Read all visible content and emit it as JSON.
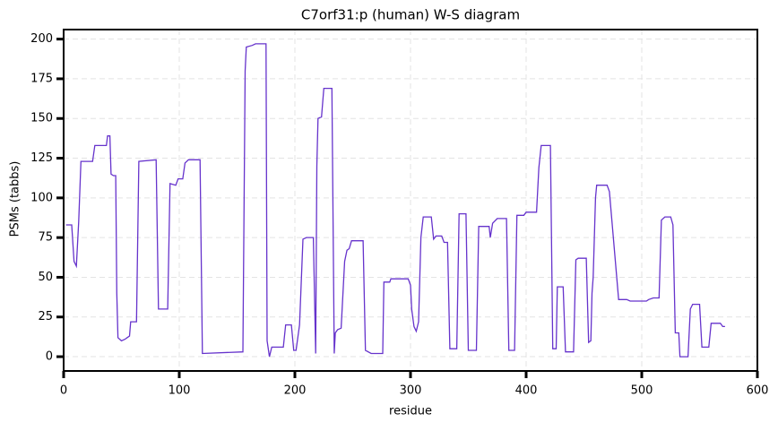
{
  "chart_data": {
    "type": "line",
    "title": "C7orf31:p (human) W-S diagram",
    "x_label": "residue",
    "y_label": "PSMs (tabbs)",
    "color": "#6633cc",
    "grid": true,
    "xlim": [
      0,
      600
    ],
    "ylim": [
      -9,
      206
    ],
    "xticks": [
      0,
      100,
      200,
      300,
      400,
      500,
      600
    ],
    "yticks": [
      0,
      25,
      50,
      75,
      100,
      125,
      150,
      175,
      200
    ],
    "x": [
      2,
      7,
      9,
      11,
      13,
      15,
      25,
      27,
      37,
      38,
      40,
      41,
      43,
      45,
      46,
      47,
      50,
      53,
      55,
      57,
      58,
      63,
      65,
      80,
      82,
      90,
      92,
      97,
      99,
      103,
      105,
      108,
      118,
      120,
      155,
      157,
      158,
      163,
      166,
      175,
      176,
      178,
      180,
      190,
      192,
      197,
      199,
      201,
      204,
      207,
      210,
      216,
      218,
      219,
      220,
      223,
      224,
      225,
      232,
      234,
      235,
      237,
      240,
      243,
      245,
      247,
      249,
      259,
      261,
      266,
      276,
      277,
      282,
      283,
      298,
      300,
      301,
      303,
      305,
      307,
      309,
      311,
      318,
      320,
      322,
      327,
      329,
      332,
      334,
      340,
      342,
      348,
      350,
      357,
      359,
      368,
      369,
      371,
      375,
      383,
      385,
      390,
      392,
      398,
      400,
      409,
      411,
      413,
      421,
      423,
      426,
      427,
      432,
      434,
      441,
      443,
      445,
      452,
      454,
      456,
      457,
      458,
      460,
      461,
      470,
      472,
      480,
      487,
      490,
      500,
      504,
      506,
      510,
      515,
      517,
      520,
      525,
      527,
      529,
      532,
      533,
      540,
      542,
      544,
      550,
      552,
      558,
      560,
      568,
      570,
      572
    ],
    "values": [
      83,
      83,
      60,
      57,
      85,
      123,
      123,
      133,
      133,
      139,
      139,
      115,
      114,
      114,
      40,
      12,
      10,
      11,
      12,
      13,
      22,
      22,
      123,
      124,
      30,
      30,
      109,
      108,
      112,
      112,
      122,
      124,
      124,
      2,
      3,
      180,
      195,
      196,
      197,
      197,
      10,
      0,
      6,
      6,
      20,
      20,
      4,
      4,
      20,
      74,
      75,
      75,
      2,
      120,
      150,
      151,
      160,
      169,
      169,
      2,
      15,
      17,
      18,
      60,
      67,
      68,
      73,
      73,
      4,
      2,
      2,
      47,
      47,
      49,
      49,
      45,
      30,
      19,
      16,
      22,
      75,
      88,
      88,
      74,
      76,
      76,
      72,
      72,
      5,
      5,
      90,
      90,
      4,
      4,
      82,
      82,
      75,
      84,
      87,
      87,
      4,
      4,
      89,
      89,
      91,
      91,
      119,
      133,
      133,
      5,
      5,
      44,
      44,
      3,
      3,
      61,
      62,
      62,
      9,
      10,
      40,
      50,
      100,
      108,
      108,
      104,
      36,
      36,
      35,
      35,
      35,
      36,
      37,
      37,
      86,
      88,
      88,
      83,
      15,
      15,
      0,
      0,
      30,
      33,
      33,
      6,
      6,
      21,
      21,
      19,
      19
    ]
  }
}
